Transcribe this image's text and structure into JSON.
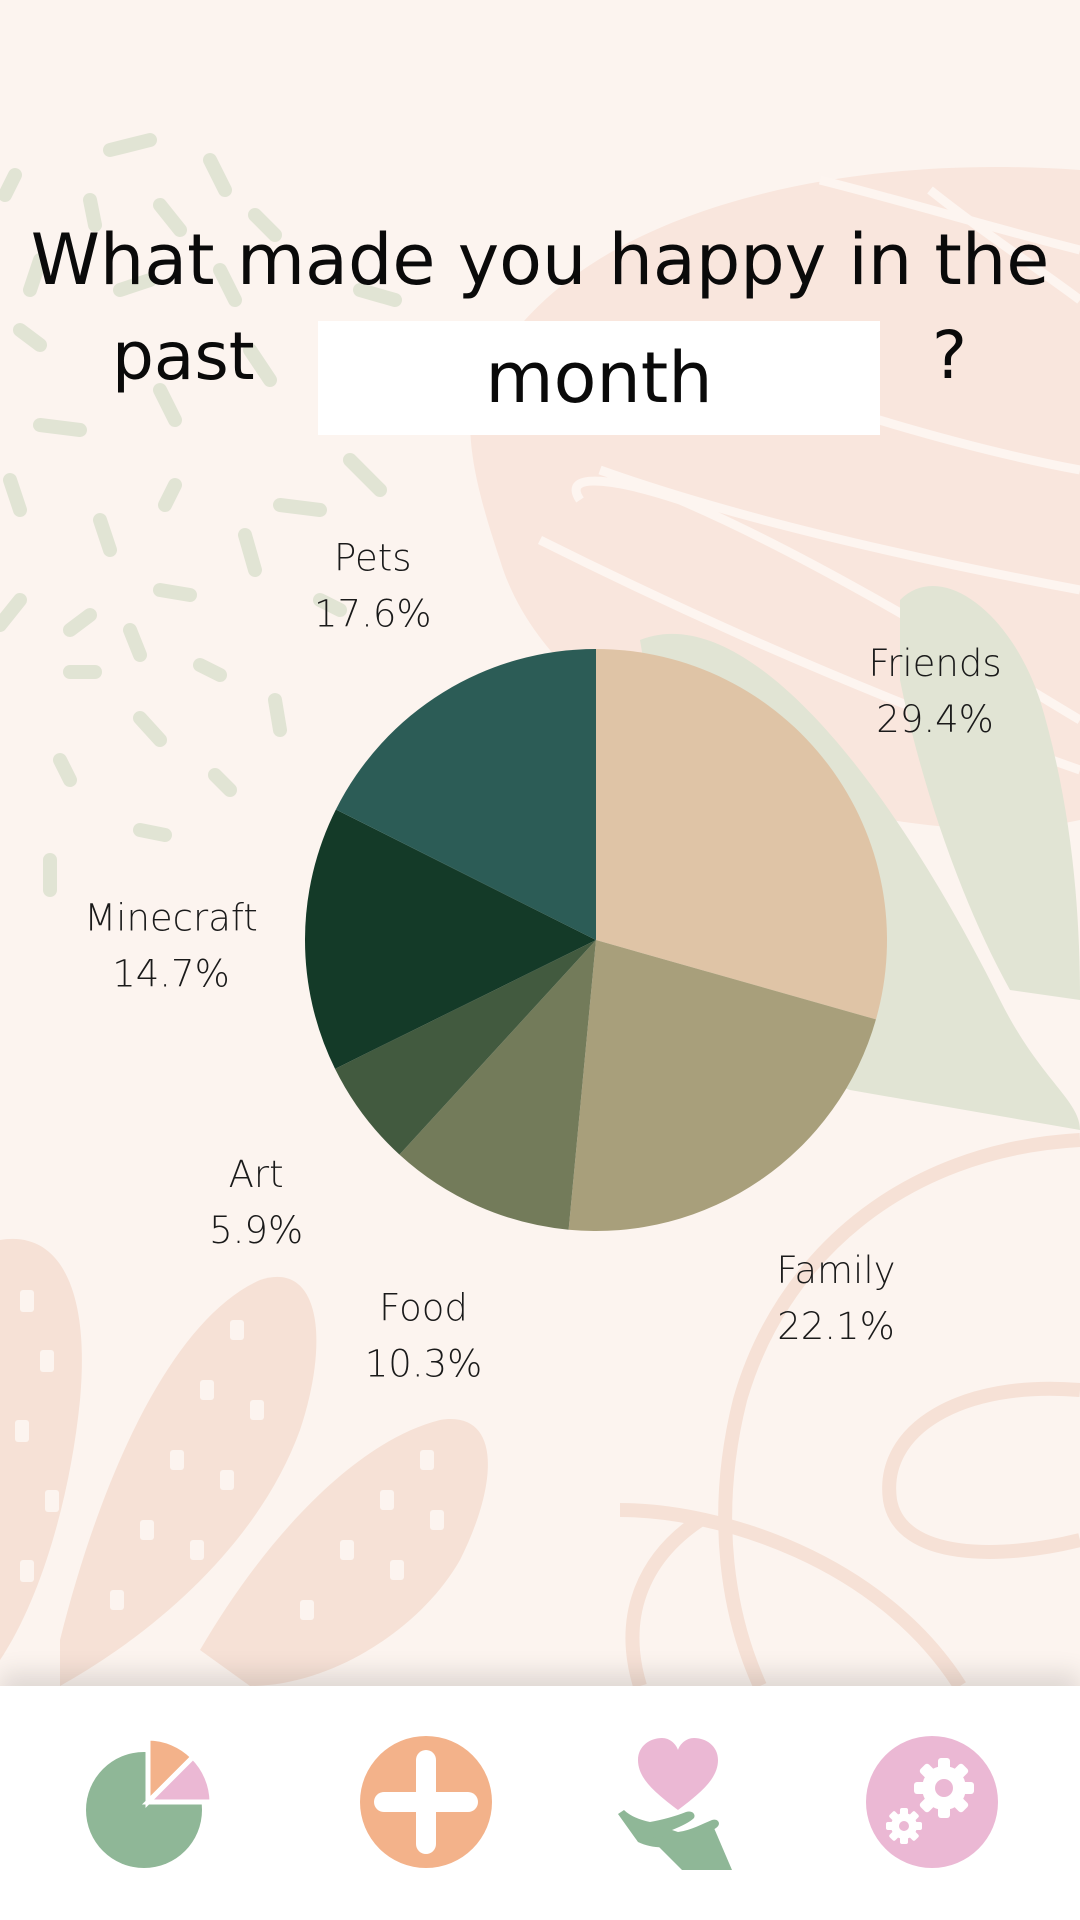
{
  "question": {
    "line1": "What made you happy in the",
    "line2_prefix": "past",
    "period": "month",
    "suffix": "?"
  },
  "chart_data": {
    "type": "pie",
    "slices": [
      {
        "label": "Friends",
        "value": 29.4,
        "percent_label": "29.4%",
        "color": "#dfc4a6"
      },
      {
        "label": "Family",
        "value": 22.1,
        "percent_label": "22.1%",
        "color": "#a89f7b"
      },
      {
        "label": "Food",
        "value": 10.3,
        "percent_label": "10.3%",
        "color": "#737b5a"
      },
      {
        "label": "Art",
        "value": 5.9,
        "percent_label": "5.9%",
        "color": "#425a3f"
      },
      {
        "label": "Minecraft",
        "value": 14.7,
        "percent_label": "14.7%",
        "color": "#143a28"
      },
      {
        "label": "Pets",
        "value": 17.6,
        "percent_label": "17.6%",
        "color": "#2c5c56"
      }
    ],
    "start_angle_deg": 0,
    "direction": "clockwise",
    "legend": "labels outside slices"
  },
  "nav": {
    "items": [
      {
        "name": "stats",
        "icon": "pie-chart-icon"
      },
      {
        "name": "add",
        "icon": "plus-icon"
      },
      {
        "name": "gratitude",
        "icon": "heart-hand-icon"
      },
      {
        "name": "settings",
        "icon": "gears-icon"
      }
    ]
  },
  "colors": {
    "background": "#fcf4ef",
    "decor_pink": "#f9e6dd",
    "decor_green": "#e1e4d4",
    "nav_green": "#8fb797",
    "nav_orange": "#f3b28a",
    "nav_pink": "#ebb8d4"
  }
}
